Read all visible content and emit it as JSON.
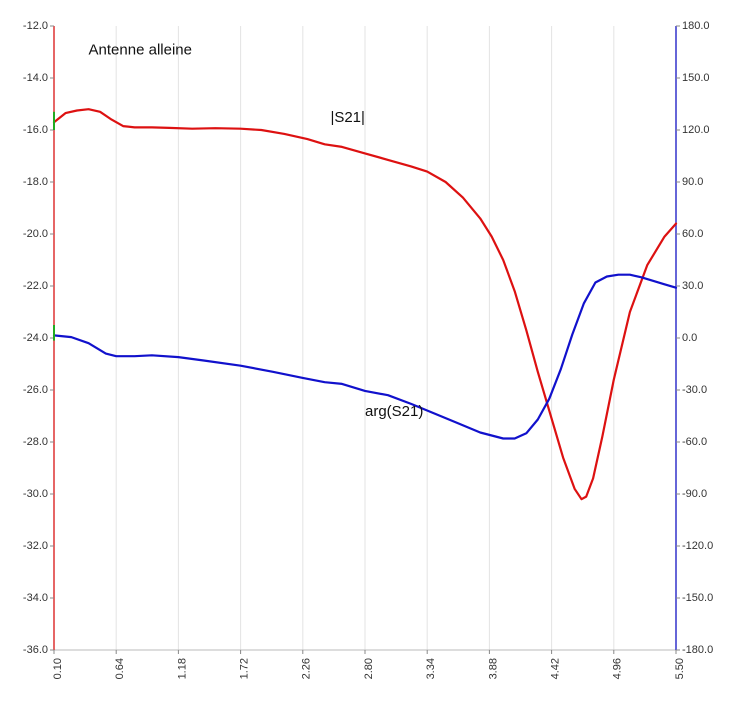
{
  "chart_data": {
    "type": "line",
    "title": "Antenne alleine",
    "x_ticks": [
      "0.10",
      "0.64",
      "1.18",
      "1.72",
      "2.26",
      "2.80",
      "3.34",
      "3.88",
      "4.42",
      "4.96",
      "5.50"
    ],
    "xlim": [
      0.1,
      5.5
    ],
    "y_left_ticks": [
      "-12.0",
      "-14.0",
      "-16.0",
      "-18.0",
      "-20.0",
      "-22.0",
      "-24.0",
      "-26.0",
      "-28.0",
      "-30.0",
      "-32.0",
      "-34.0",
      "-36.0"
    ],
    "ylim_left": [
      -36.0,
      -12.0
    ],
    "y_right_ticks": [
      "180.0",
      "150.0",
      "120.0",
      "90.0",
      "60.0",
      "30.0",
      "0.0",
      "-30.0",
      "-60.0",
      "-90.0",
      "-120.0",
      "-150.0",
      "-180.0"
    ],
    "ylim_right": [
      -180.0,
      180.0
    ],
    "grid": "vertical",
    "series": [
      {
        "name": "|S21|",
        "axis": "left",
        "color": "#dd1111",
        "x": [
          0.1,
          0.2,
          0.3,
          0.4,
          0.5,
          0.6,
          0.7,
          0.8,
          0.95,
          1.1,
          1.3,
          1.5,
          1.72,
          1.9,
          2.1,
          2.3,
          2.45,
          2.6,
          2.8,
          3.0,
          3.2,
          3.34,
          3.5,
          3.65,
          3.8,
          3.9,
          4.0,
          4.1,
          4.2,
          4.3,
          4.42,
          4.52,
          4.62,
          4.68,
          4.72,
          4.78,
          4.86,
          4.96,
          5.1,
          5.25,
          5.4,
          5.5
        ],
        "values": [
          -15.7,
          -15.35,
          -15.25,
          -15.2,
          -15.3,
          -15.6,
          -15.85,
          -15.9,
          -15.9,
          -15.92,
          -15.95,
          -15.93,
          -15.95,
          -16.0,
          -16.15,
          -16.35,
          -16.55,
          -16.65,
          -16.9,
          -17.15,
          -17.4,
          -17.6,
          -18.0,
          -18.6,
          -19.4,
          -20.1,
          -21.0,
          -22.2,
          -23.7,
          -25.3,
          -27.1,
          -28.6,
          -29.8,
          -30.2,
          -30.1,
          -29.4,
          -27.8,
          -25.6,
          -23.0,
          -21.2,
          -20.1,
          -19.6
        ]
      },
      {
        "name": "arg(S21)",
        "axis": "right",
        "color": "#1111cc",
        "x": [
          0.1,
          0.25,
          0.4,
          0.55,
          0.64,
          0.8,
          0.95,
          1.18,
          1.4,
          1.72,
          2.0,
          2.26,
          2.45,
          2.6,
          2.8,
          3.0,
          3.2,
          3.4,
          3.6,
          3.8,
          4.0,
          4.1,
          4.2,
          4.3,
          4.4,
          4.5,
          4.6,
          4.7,
          4.8,
          4.9,
          5.0,
          5.1,
          5.2,
          5.3,
          5.4,
          5.5
        ],
        "values": [
          1.5,
          0.5,
          -3.0,
          -9.0,
          -10.5,
          -10.5,
          -10.0,
          -11.0,
          -13.0,
          -16.0,
          -19.5,
          -23.0,
          -25.5,
          -26.5,
          -30.5,
          -33.0,
          -38.0,
          -43.5,
          -49.0,
          -54.5,
          -58.0,
          -58.0,
          -55.0,
          -47.0,
          -35.0,
          -18.0,
          2.0,
          20.0,
          32.0,
          35.5,
          36.5,
          36.5,
          35.0,
          33.0,
          31.0,
          29.0
        ]
      }
    ],
    "annotations": [
      {
        "text": "Antenne alleine",
        "x": 0.4,
        "y_left": -13.1
      },
      {
        "text": "|S21|",
        "x": 2.5,
        "y_left": -15.7
      },
      {
        "text": "arg(S21)",
        "x": 2.8,
        "y_left": -27.0
      }
    ]
  }
}
